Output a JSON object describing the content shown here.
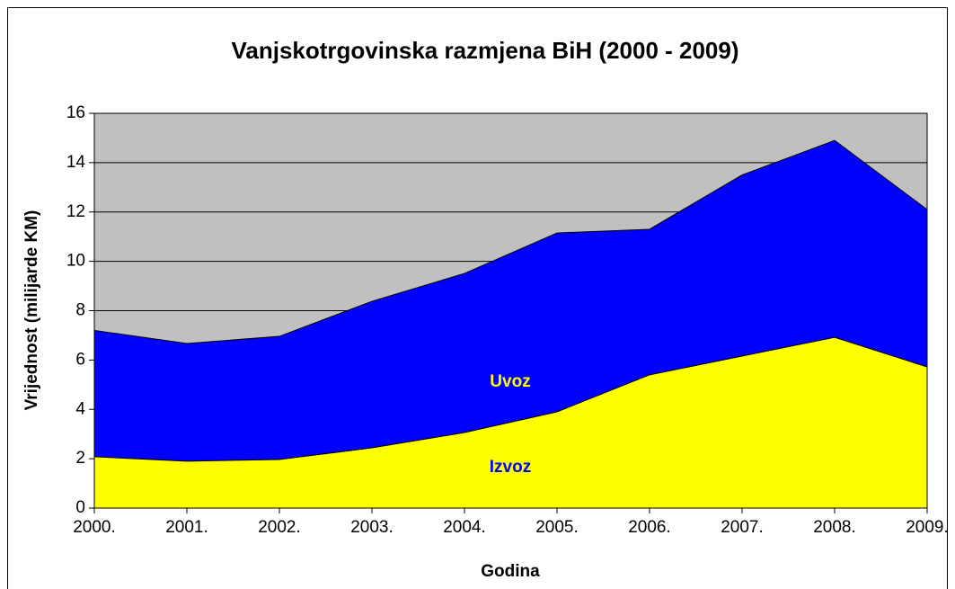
{
  "chart_data": {
    "type": "area",
    "title": "Vanjskotrgovinska razmjena BiH (2000 - 2009)",
    "x_label": "Godina",
    "y_label": "Vrijednost (milijarde KM)",
    "categories": [
      "2000.",
      "2001.",
      "2002.",
      "2003.",
      "2004.",
      "2005.",
      "2006.",
      "2007.",
      "2008.",
      "2009."
    ],
    "series": [
      {
        "name": "Uvoz",
        "color": "#0000ff",
        "label_color": "#ffff00",
        "values": [
          7.2,
          6.67,
          6.96,
          8.38,
          9.51,
          11.15,
          11.3,
          13.5,
          14.9,
          12.1
        ]
      },
      {
        "name": "Izvoz",
        "color": "#ffff00",
        "label_color": "#0000ff",
        "values": [
          2.08,
          1.9,
          1.97,
          2.44,
          3.06,
          3.9,
          5.4,
          6.16,
          6.92,
          5.72
        ]
      }
    ],
    "ylim": [
      0,
      16
    ],
    "yticks": [
      0,
      2,
      4,
      6,
      8,
      10,
      12,
      14,
      16
    ],
    "grid": true,
    "plot_background": "#c0c0c0"
  }
}
